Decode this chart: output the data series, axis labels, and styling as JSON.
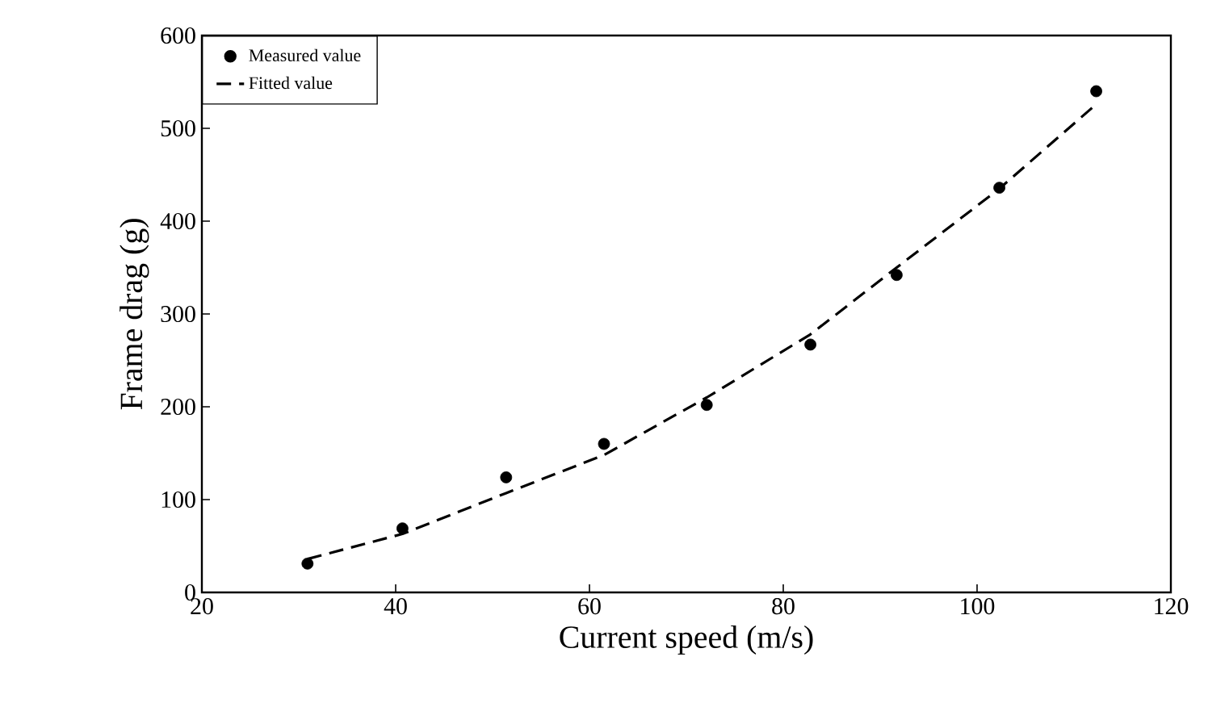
{
  "chart_data": {
    "type": "scatter",
    "xlabel": "Current speed (m/s)",
    "ylabel": "Frame drag (g)",
    "xlim": [
      20,
      120
    ],
    "xticks": [
      20,
      40,
      60,
      80,
      100,
      120
    ],
    "ylim": [
      0,
      600
    ],
    "yticks": [
      0,
      100,
      200,
      300,
      400,
      500,
      600
    ],
    "grid": false,
    "legend": "top left",
    "series": [
      {
        "name": "Measured value",
        "type": "scatter",
        "marker": "circle",
        "color": "#000000",
        "x": [
          30.9,
          40.7,
          51.4,
          61.5,
          72.1,
          82.8,
          91.7,
          102.3,
          112.3
        ],
        "values": [
          31,
          69,
          124,
          160,
          202,
          267,
          342,
          436,
          540
        ]
      },
      {
        "name": "Fitted value",
        "type": "line",
        "line_style": "dashed",
        "marker": "none",
        "color": "#000000",
        "x": [
          30.9,
          40.7,
          51.4,
          61.5,
          72.1,
          82.8,
          91.7,
          102.3,
          112.3
        ],
        "values": [
          36,
          63,
          107,
          148,
          210,
          278,
          350,
          435,
          526
        ]
      }
    ]
  }
}
